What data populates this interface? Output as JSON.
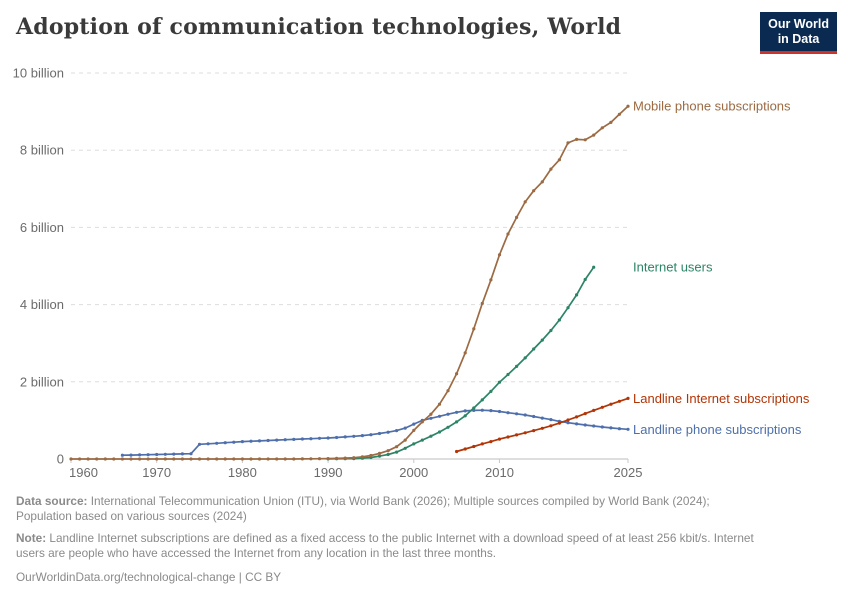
{
  "header": {
    "title": "Adoption of communication technologies, World",
    "logo": {
      "line1": "Our World",
      "line2": "in Data",
      "bg_color": "#0b2a52",
      "accent_color": "#ca342b"
    }
  },
  "chart_data": {
    "type": "line",
    "title": "Adoption of communication technologies, World",
    "xlabel": "",
    "ylabel": "",
    "unit": "billion",
    "xlim": [
      1960,
      2025
    ],
    "ylim": [
      0,
      10
    ],
    "grid": "horizontal-dashed",
    "legend_position": "right-margin-line-labels",
    "x_ticks": [
      1960,
      1970,
      1980,
      1990,
      2000,
      2010,
      2025
    ],
    "y_ticks": [
      {
        "value": 0,
        "label": "0"
      },
      {
        "value": 2,
        "label": "2 billion"
      },
      {
        "value": 4,
        "label": "4 billion"
      },
      {
        "value": 6,
        "label": "6 billion"
      },
      {
        "value": 8,
        "label": "8 billion"
      },
      {
        "value": 10,
        "label": "10 billion"
      }
    ],
    "axis_color": "#c9c9c9",
    "grid_color": "#dddddd",
    "tick_label_color": "#6b6b6b",
    "series": [
      {
        "name": "Mobile phone subscriptions",
        "color": "#9c6a43",
        "points": [
          [
            1960,
            0
          ],
          [
            1961,
            0
          ],
          [
            1962,
            0
          ],
          [
            1963,
            0
          ],
          [
            1964,
            0
          ],
          [
            1965,
            0
          ],
          [
            1966,
            0
          ],
          [
            1967,
            0
          ],
          [
            1968,
            0
          ],
          [
            1969,
            0
          ],
          [
            1970,
            0
          ],
          [
            1971,
            0
          ],
          [
            1972,
            0
          ],
          [
            1973,
            0
          ],
          [
            1974,
            0
          ],
          [
            1975,
            0
          ],
          [
            1976,
            0
          ],
          [
            1977,
            0
          ],
          [
            1978,
            0
          ],
          [
            1979,
            0
          ],
          [
            1980,
            0
          ],
          [
            1981,
            0
          ],
          [
            1982,
            0
          ],
          [
            1983,
            0
          ],
          [
            1984,
            0
          ],
          [
            1985,
            0.001
          ],
          [
            1986,
            0.001
          ],
          [
            1987,
            0.002
          ],
          [
            1988,
            0.004
          ],
          [
            1989,
            0.007
          ],
          [
            1990,
            0.011
          ],
          [
            1991,
            0.016
          ],
          [
            1992,
            0.023
          ],
          [
            1993,
            0.034
          ],
          [
            1994,
            0.055
          ],
          [
            1995,
            0.091
          ],
          [
            1996,
            0.145
          ],
          [
            1997,
            0.215
          ],
          [
            1998,
            0.318
          ],
          [
            1999,
            0.49
          ],
          [
            2000,
            0.74
          ],
          [
            2001,
            0.96
          ],
          [
            2002,
            1.16
          ],
          [
            2003,
            1.42
          ],
          [
            2004,
            1.77
          ],
          [
            2005,
            2.21
          ],
          [
            2006,
            2.75
          ],
          [
            2007,
            3.37
          ],
          [
            2008,
            4.03
          ],
          [
            2009,
            4.64
          ],
          [
            2010,
            5.29
          ],
          [
            2011,
            5.83
          ],
          [
            2012,
            6.26
          ],
          [
            2013,
            6.66
          ],
          [
            2014,
            6.95
          ],
          [
            2015,
            7.18
          ],
          [
            2016,
            7.51
          ],
          [
            2017,
            7.75
          ],
          [
            2018,
            8.19
          ],
          [
            2019,
            8.28
          ],
          [
            2020,
            8.27
          ],
          [
            2021,
            8.39
          ],
          [
            2022,
            8.58
          ],
          [
            2023,
            8.72
          ],
          [
            2024,
            8.93
          ],
          [
            2025,
            9.14
          ]
        ]
      },
      {
        "name": "Internet users",
        "color": "#2c8465",
        "points": [
          [
            1990,
            0.003
          ],
          [
            1991,
            0.004
          ],
          [
            1992,
            0.007
          ],
          [
            1993,
            0.01
          ],
          [
            1994,
            0.021
          ],
          [
            1995,
            0.039
          ],
          [
            1996,
            0.074
          ],
          [
            1997,
            0.117
          ],
          [
            1998,
            0.18
          ],
          [
            1999,
            0.276
          ],
          [
            2000,
            0.39
          ],
          [
            2001,
            0.49
          ],
          [
            2002,
            0.59
          ],
          [
            2003,
            0.7
          ],
          [
            2004,
            0.82
          ],
          [
            2005,
            0.96
          ],
          [
            2006,
            1.12
          ],
          [
            2007,
            1.32
          ],
          [
            2008,
            1.53
          ],
          [
            2009,
            1.75
          ],
          [
            2010,
            1.99
          ],
          [
            2011,
            2.19
          ],
          [
            2012,
            2.4
          ],
          [
            2013,
            2.62
          ],
          [
            2014,
            2.85
          ],
          [
            2015,
            3.08
          ],
          [
            2016,
            3.33
          ],
          [
            2017,
            3.6
          ],
          [
            2018,
            3.92
          ],
          [
            2019,
            4.25
          ],
          [
            2020,
            4.65
          ],
          [
            2021,
            4.97
          ]
        ]
      },
      {
        "name": "Landline Internet subscriptions",
        "color": "#b13507",
        "points": [
          [
            2005,
            0.195
          ],
          [
            2006,
            0.26
          ],
          [
            2007,
            0.325
          ],
          [
            2008,
            0.39
          ],
          [
            2009,
            0.45
          ],
          [
            2010,
            0.515
          ],
          [
            2011,
            0.57
          ],
          [
            2012,
            0.625
          ],
          [
            2013,
            0.68
          ],
          [
            2014,
            0.735
          ],
          [
            2015,
            0.795
          ],
          [
            2016,
            0.86
          ],
          [
            2017,
            0.93
          ],
          [
            2018,
            1.01
          ],
          [
            2019,
            1.09
          ],
          [
            2020,
            1.175
          ],
          [
            2021,
            1.26
          ],
          [
            2022,
            1.34
          ],
          [
            2023,
            1.42
          ],
          [
            2024,
            1.495
          ],
          [
            2025,
            1.57
          ]
        ]
      },
      {
        "name": "Landline phone subscriptions",
        "color": "#4e6fab",
        "points": [
          [
            1966,
            0.098
          ],
          [
            1967,
            0.102
          ],
          [
            1968,
            0.106
          ],
          [
            1969,
            0.111
          ],
          [
            1970,
            0.116
          ],
          [
            1971,
            0.121
          ],
          [
            1972,
            0.126
          ],
          [
            1973,
            0.132
          ],
          [
            1974,
            0.138
          ],
          [
            1975,
            0.38
          ],
          [
            1976,
            0.394
          ],
          [
            1977,
            0.408
          ],
          [
            1978,
            0.422
          ],
          [
            1979,
            0.436
          ],
          [
            1980,
            0.45
          ],
          [
            1981,
            0.46
          ],
          [
            1982,
            0.47
          ],
          [
            1983,
            0.48
          ],
          [
            1984,
            0.49
          ],
          [
            1985,
            0.5
          ],
          [
            1986,
            0.509
          ],
          [
            1987,
            0.518
          ],
          [
            1988,
            0.527
          ],
          [
            1989,
            0.536
          ],
          [
            1990,
            0.545
          ],
          [
            1991,
            0.558
          ],
          [
            1992,
            0.572
          ],
          [
            1993,
            0.588
          ],
          [
            1994,
            0.607
          ],
          [
            1995,
            0.63
          ],
          [
            1996,
            0.66
          ],
          [
            1997,
            0.695
          ],
          [
            1998,
            0.735
          ],
          [
            1999,
            0.8
          ],
          [
            2000,
            0.905
          ],
          [
            2001,
            1.0
          ],
          [
            2002,
            1.055
          ],
          [
            2003,
            1.105
          ],
          [
            2004,
            1.16
          ],
          [
            2005,
            1.21
          ],
          [
            2006,
            1.245
          ],
          [
            2007,
            1.258
          ],
          [
            2008,
            1.265
          ],
          [
            2009,
            1.255
          ],
          [
            2010,
            1.23
          ],
          [
            2011,
            1.2
          ],
          [
            2012,
            1.17
          ],
          [
            2013,
            1.14
          ],
          [
            2014,
            1.1
          ],
          [
            2015,
            1.06
          ],
          [
            2016,
            1.02
          ],
          [
            2017,
            0.975
          ],
          [
            2018,
            0.94
          ],
          [
            2019,
            0.91
          ],
          [
            2020,
            0.88
          ],
          [
            2021,
            0.855
          ],
          [
            2022,
            0.83
          ],
          [
            2023,
            0.805
          ],
          [
            2024,
            0.785
          ],
          [
            2025,
            0.77
          ]
        ]
      }
    ]
  },
  "footer": {
    "source_label": "Data source:",
    "source_text": " International Telecommunication Union (ITU), via World Bank (2026); Multiple sources compiled by World Bank (2024);\nPopulation based on various sources (2024)",
    "note_label": "Note:",
    "note_text": " Landline Internet subscriptions are defined as a fixed access to the public Internet with a download speed of at least 256 kbit/s. Internet\nusers are people who have accessed the Internet from any location in the last three months.",
    "url": "OurWorldinData.org/technological-change",
    "separator": " | ",
    "license": "CC BY"
  }
}
